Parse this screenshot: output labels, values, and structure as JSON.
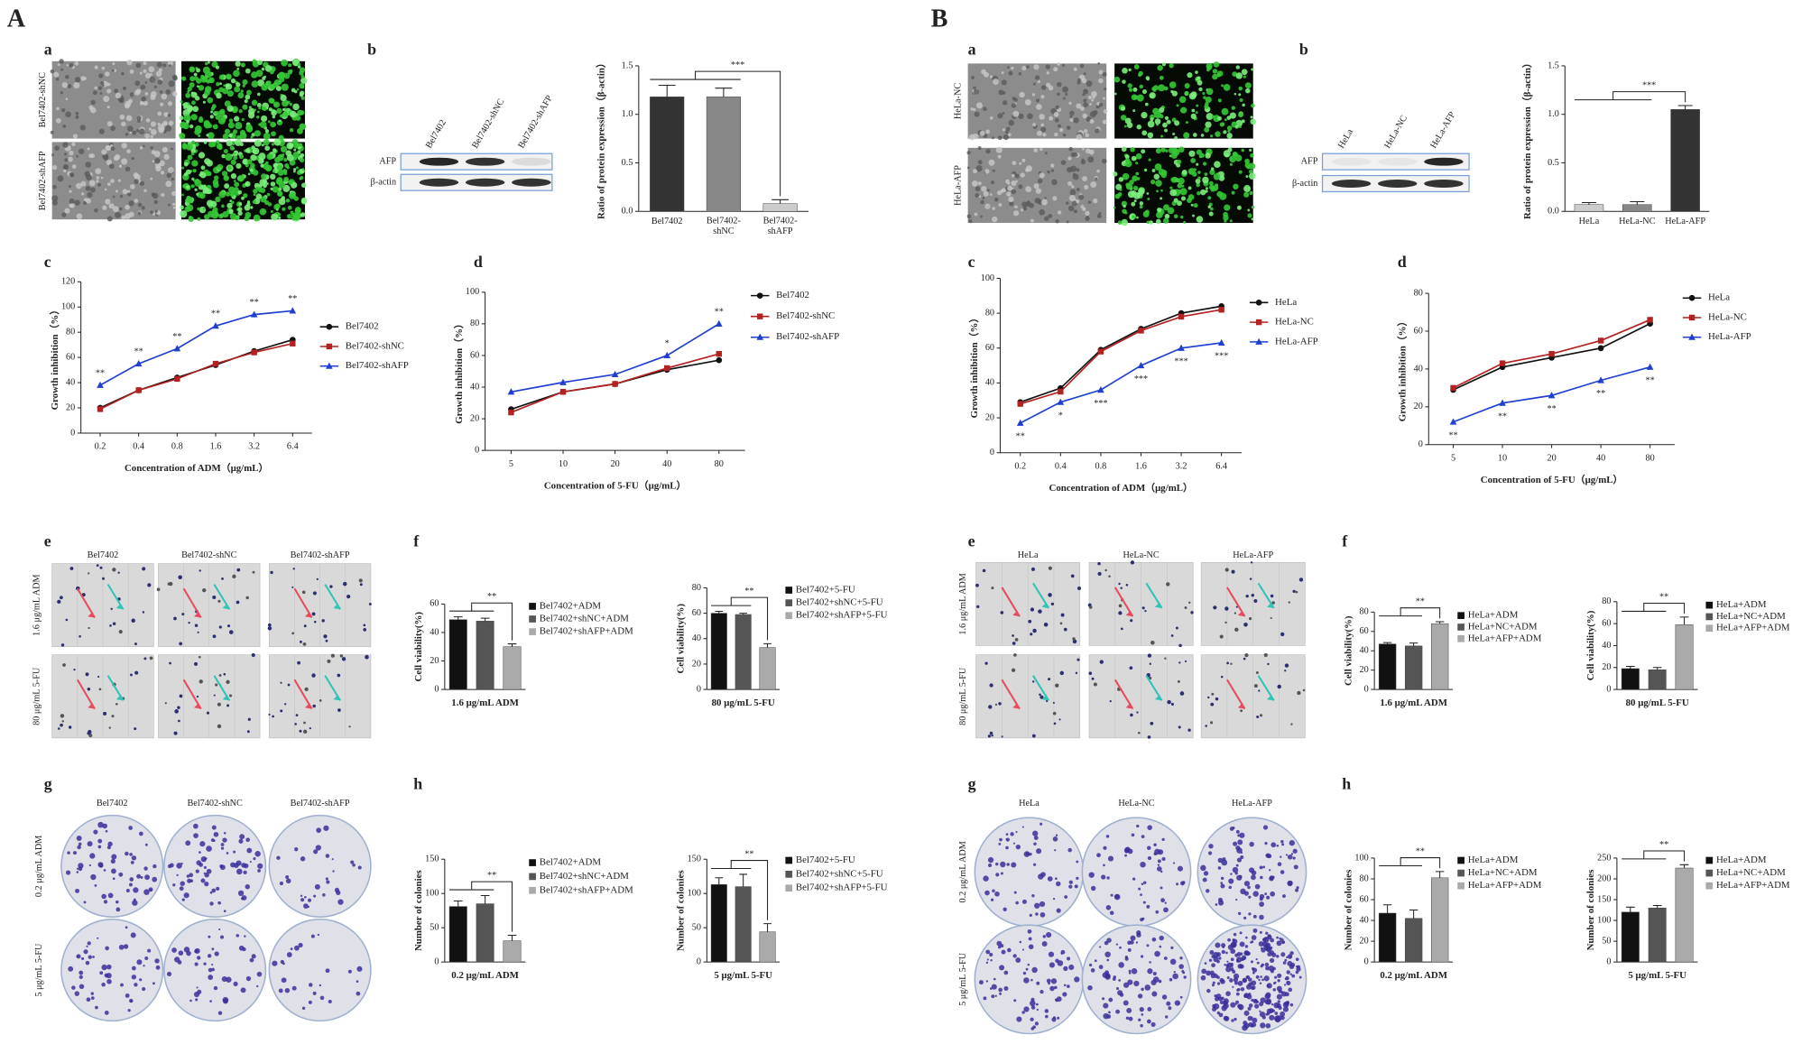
{
  "figure": {
    "groups": [
      {
        "letter": "A",
        "panels": [
          "a",
          "b",
          "c",
          "d",
          "e",
          "f",
          "g",
          "h"
        ],
        "a_rows": [
          "Bel7402-shNC",
          "Bel7402-shAFP"
        ],
        "blot_lanes": [
          "Bel7402",
          "Bel7402-shNC",
          "Bel7402-shAFP"
        ],
        "blot_bands": [
          "AFP",
          "β-actin"
        ],
        "e_columns": [
          "Bel7402",
          "Bel7402-shNC",
          "Bel7402-shAFP"
        ],
        "e_rows": [
          "1.6 μg/mL  ADM",
          "80 μg/mL  5-FU"
        ],
        "g_columns": [
          "Bel7402",
          "Bel7402-shNC",
          "Bel7402-shAFP"
        ],
        "g_rows": [
          "0.2 μg/mL  ADM",
          "5 μg/mL  5-FU"
        ]
      },
      {
        "letter": "B",
        "panels": [
          "a",
          "b",
          "c",
          "d",
          "e",
          "f",
          "g",
          "h"
        ],
        "a_rows": [
          "HeLa-NC",
          "HeLa-AFP"
        ],
        "blot_lanes": [
          "HeLa",
          "HeLa-NC",
          "HeLa-AFP"
        ],
        "blot_bands": [
          "AFP",
          "β-actin"
        ],
        "e_columns": [
          "HeLa",
          "HeLa-NC",
          "HeLa-AFP"
        ],
        "e_rows": [
          "1.6 μg/mL  ADM",
          "80 μg/mL  5-FU"
        ],
        "g_columns": [
          "HeLa",
          "HeLa-NC",
          "HeLa-AFP"
        ],
        "g_rows": [
          "0.2 μg/mL  ADM",
          "5 μg/mL  5-FU"
        ]
      }
    ]
  },
  "chart_data": [
    {
      "type": "bar",
      "ylabel": "Ratio of protein expression（β-actin）",
      "categories": [
        "Bel7402",
        "Bel7402-\nshNC",
        "Bel7402-\nshAFP"
      ],
      "values": [
        1.18,
        1.18,
        0.08
      ],
      "errors": [
        0.12,
        0.09,
        0.04
      ],
      "colors": [
        "#333333",
        "#888888",
        "#cccccc"
      ],
      "significance": "***",
      "ylim": [
        0,
        1.5
      ],
      "yticks": [
        {
          "value": 0,
          "label": "0.0"
        },
        0.5,
        {
          "value": 1,
          "label": "1.0"
        },
        1.5
      ]
    },
    {
      "type": "line",
      "xlabel": "Concentration of ADM（μg/mL）",
      "ylabel": "Growth inhibition（%）",
      "categories": [
        "0.2",
        "0.4",
        "0.8",
        "1.6",
        "3.2",
        "6.4"
      ],
      "ylim": [
        0,
        120
      ],
      "yticks": [
        0,
        20,
        40,
        60,
        80,
        100,
        120
      ],
      "series": [
        {
          "name": "Bel7402",
          "color": "#111111",
          "marker": "circle",
          "values": [
            20,
            34,
            44,
            54,
            65,
            74
          ]
        },
        {
          "name": "Bel7402-shNC",
          "color": "#b22222",
          "marker": "square",
          "values": [
            19,
            34,
            43,
            55,
            64,
            71
          ]
        },
        {
          "name": "Bel7402-shAFP",
          "color": "#1f3fd0",
          "marker": "triangle",
          "values": [
            38,
            55,
            67,
            85,
            94,
            97
          ],
          "labels": [
            "**",
            "**",
            "**",
            "**",
            "**",
            "**"
          ]
        }
      ]
    },
    {
      "type": "line",
      "xlabel": "Concentration of 5-FU（μg/mL）",
      "ylabel": "Growth inhibition（%）",
      "categories": [
        "5",
        "10",
        "20",
        "40",
        "80"
      ],
      "ylim": [
        0,
        100
      ],
      "yticks": [
        0,
        20,
        40,
        60,
        80,
        100
      ],
      "series": [
        {
          "name": "Bel7402",
          "color": "#111111",
          "marker": "circle",
          "values": [
            26,
            37,
            42,
            51,
            57
          ]
        },
        {
          "name": "Bel7402-shNC",
          "color": "#b22222",
          "marker": "square",
          "values": [
            24,
            37,
            42,
            52,
            61
          ]
        },
        {
          "name": "Bel7402-shAFP",
          "color": "#1f3fd0",
          "marker": "triangle",
          "values": [
            37,
            43,
            48,
            60,
            80
          ],
          "labels": [
            null,
            null,
            null,
            "*",
            "**"
          ]
        }
      ]
    },
    {
      "type": "bar",
      "xlabel": "1.6 μg/mL  ADM",
      "ylabel": "Cell viability(%)",
      "significance": "**",
      "ylim": [
        0,
        60
      ],
      "yticks": [
        0,
        20,
        40,
        60
      ],
      "series": [
        {
          "name": "Bel7402+ADM",
          "color": "#111111",
          "values": [
            49
          ],
          "errors": [
            2
          ]
        },
        {
          "name": "Bel7402+shNC+ADM",
          "color": "#555555",
          "values": [
            48
          ],
          "errors": [
            2
          ]
        },
        {
          "name": "Bel7402+shAFP+ADM",
          "color": "#aaaaaa",
          "values": [
            30
          ],
          "errors": [
            2
          ]
        }
      ]
    },
    {
      "type": "bar",
      "xlabel": "80 μg/mL  5-FU",
      "ylabel": "Cell viability(%)",
      "significance": "**",
      "ylim": [
        0,
        80
      ],
      "yticks": [
        0,
        20,
        40,
        60,
        80
      ],
      "series": [
        {
          "name": "Bel7402+5-FU",
          "color": "#111111",
          "values": [
            60
          ],
          "errors": [
            1.5
          ]
        },
        {
          "name": "Bel7402+shNC+5-FU",
          "color": "#555555",
          "values": [
            59
          ],
          "errors": [
            1
          ]
        },
        {
          "name": "Bel7402+shAFP+5-FU",
          "color": "#aaaaaa",
          "values": [
            33
          ],
          "errors": [
            3
          ]
        }
      ]
    },
    {
      "type": "bar",
      "xlabel": "0.2 μg/mL  ADM",
      "ylabel": "Number of colonies",
      "significance": "**",
      "ylim": [
        0,
        150
      ],
      "yticks": [
        0,
        50,
        100,
        150
      ],
      "series": [
        {
          "name": "Bel7402+ADM",
          "color": "#111111",
          "values": [
            81
          ],
          "errors": [
            8
          ]
        },
        {
          "name": "Bel7402+shNC+ADM",
          "color": "#555555",
          "values": [
            85
          ],
          "errors": [
            12
          ]
        },
        {
          "name": "Bel7402+shAFP+ADM",
          "color": "#aaaaaa",
          "values": [
            31
          ],
          "errors": [
            8
          ]
        }
      ]
    },
    {
      "type": "bar",
      "xlabel": "5 μg/mL  5-FU",
      "ylabel": "Number of colonies",
      "significance": "**",
      "ylim": [
        0,
        150
      ],
      "yticks": [
        0,
        50,
        100,
        150
      ],
      "series": [
        {
          "name": "Bel7402+5-FU",
          "color": "#111111",
          "values": [
            113
          ],
          "errors": [
            10
          ]
        },
        {
          "name": "Bel7402+shNC+5-FU",
          "color": "#555555",
          "values": [
            110
          ],
          "errors": [
            18
          ]
        },
        {
          "name": "Bel7402+shAFP+5-FU",
          "color": "#aaaaaa",
          "values": [
            44
          ],
          "errors": [
            12
          ]
        }
      ]
    },
    {
      "type": "bar",
      "ylabel": "Ratio of protein expression（β-actin）",
      "categories": [
        "HeLa",
        "HeLa-NC",
        "HeLa-AFP"
      ],
      "values": [
        0.07,
        0.07,
        1.05
      ],
      "errors": [
        0.02,
        0.03,
        0.04
      ],
      "colors": [
        "#cccccc",
        "#888888",
        "#333333"
      ],
      "significance": "***",
      "ylim": [
        0,
        1.5
      ],
      "yticks": [
        {
          "value": 0,
          "label": "0.0"
        },
        0.5,
        {
          "value": 1,
          "label": "1.0"
        },
        1.5
      ]
    },
    {
      "type": "line",
      "xlabel": "Concentration of ADM（μg/mL）",
      "ylabel": "Growth inhibition（%）",
      "categories": [
        "0.2",
        "0.4",
        "0.8",
        "1.6",
        "3.2",
        "6.4"
      ],
      "ylim": [
        0,
        100
      ],
      "yticks": [
        0,
        20,
        40,
        60,
        80,
        100
      ],
      "series": [
        {
          "name": "HeLa",
          "color": "#111111",
          "marker": "circle",
          "values": [
            29,
            37,
            59,
            71,
            80,
            84
          ]
        },
        {
          "name": "HeLa-NC",
          "color": "#b22222",
          "marker": "square",
          "values": [
            28,
            35,
            58,
            70,
            78,
            82
          ]
        },
        {
          "name": "HeLa-AFP",
          "color": "#1f3fd0",
          "marker": "triangle",
          "values": [
            17,
            29,
            36,
            50,
            60,
            63
          ],
          "labels": [
            "**",
            "*",
            "***",
            "***",
            "***",
            "***"
          ]
        }
      ]
    },
    {
      "type": "line",
      "xlabel": "Concentration of 5-FU（μg/mL）",
      "ylabel": "Growth inhibition（%）",
      "categories": [
        "5",
        "10",
        "20",
        "40",
        "80"
      ],
      "ylim": [
        0,
        80
      ],
      "yticks": [
        0,
        20,
        40,
        60,
        80
      ],
      "series": [
        {
          "name": "HeLa",
          "color": "#111111",
          "marker": "circle",
          "values": [
            29,
            41,
            46,
            51,
            64
          ]
        },
        {
          "name": "HeLa-NC",
          "color": "#b22222",
          "marker": "square",
          "values": [
            30,
            43,
            48,
            55,
            66
          ]
        },
        {
          "name": "HeLa-AFP",
          "color": "#1f3fd0",
          "marker": "triangle",
          "values": [
            12,
            22,
            26,
            34,
            41
          ],
          "labels": [
            "**",
            "**",
            "**",
            "**",
            "**"
          ]
        }
      ]
    },
    {
      "type": "bar",
      "xlabel": "1.6 μg/mL  ADM",
      "ylabel": "Cell viability(%)",
      "significance": "**",
      "ylim": [
        0,
        80
      ],
      "yticks": [
        0,
        20,
        40,
        60,
        80
      ],
      "series": [
        {
          "name": "HeLa+ADM",
          "color": "#111111",
          "values": [
            47
          ],
          "errors": [
            1.5
          ]
        },
        {
          "name": "HeLa+NC+ADM",
          "color": "#555555",
          "values": [
            45
          ],
          "errors": [
            3
          ]
        },
        {
          "name": "HeLa+AFP+ADM",
          "color": "#aaaaaa",
          "values": [
            68
          ],
          "errors": [
            2
          ]
        }
      ]
    },
    {
      "type": "bar",
      "xlabel": "80 μg/mL  5-FU",
      "ylabel": "Cell viability(%)",
      "significance": "**",
      "ylim": [
        0,
        80
      ],
      "yticks": [
        0,
        20,
        40,
        60,
        80
      ],
      "series": [
        {
          "name": "HeLa+ADM",
          "color": "#111111",
          "values": [
            19
          ],
          "errors": [
            2
          ]
        },
        {
          "name": "HeLa+NC+ADM",
          "color": "#555555",
          "values": [
            18
          ],
          "errors": [
            2
          ]
        },
        {
          "name": "HeLa+AFP+ADM",
          "color": "#aaaaaa",
          "values": [
            59
          ],
          "errors": [
            7
          ]
        }
      ]
    },
    {
      "type": "bar",
      "xlabel": "0.2 μg/mL  ADM",
      "ylabel": "Number of colonies",
      "significance": "**",
      "ylim": [
        0,
        100
      ],
      "yticks": [
        0,
        20,
        40,
        60,
        80,
        100
      ],
      "series": [
        {
          "name": "HeLa+ADM",
          "color": "#111111",
          "values": [
            47
          ],
          "errors": [
            8
          ]
        },
        {
          "name": "HeLa+NC+ADM",
          "color": "#555555",
          "values": [
            42
          ],
          "errors": [
            8
          ]
        },
        {
          "name": "HeLa+AFP+ADM",
          "color": "#aaaaaa",
          "values": [
            81
          ],
          "errors": [
            6
          ]
        }
      ]
    },
    {
      "type": "bar",
      "xlabel": "5 μg/mL  5-FU",
      "ylabel": "Number of colonies",
      "significance": "**",
      "ylim": [
        0,
        250
      ],
      "yticks": [
        0,
        50,
        100,
        150,
        200,
        250
      ],
      "series": [
        {
          "name": "HeLa+ADM",
          "color": "#111111",
          "values": [
            120
          ],
          "errors": [
            12
          ]
        },
        {
          "name": "HeLa+NC+ADM",
          "color": "#555555",
          "values": [
            130
          ],
          "errors": [
            6
          ]
        },
        {
          "name": "HeLa+AFP+ADM",
          "color": "#aaaaaa",
          "values": [
            226
          ],
          "errors": [
            8
          ]
        }
      ]
    }
  ]
}
